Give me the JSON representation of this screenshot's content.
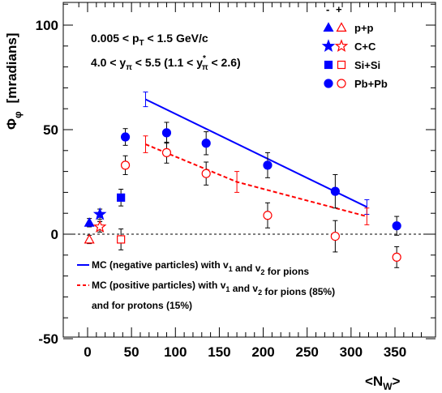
{
  "chart_data": {
    "type": "scatter",
    "xlabel": "<N",
    "xlabel_sub": "W",
    "xlabel_end": ">",
    "ylabel": "Φ",
    "ylabel_sub": "φ",
    "ylabel_unit": "[mradians]",
    "xlim": [
      -12,
      390
    ],
    "ylim": [
      -50,
      110
    ],
    "x_ticks": [
      0,
      50,
      100,
      150,
      200,
      250,
      300,
      350
    ],
    "x_tick_labels": [
      "0",
      "50",
      "100",
      "150",
      "200",
      "250",
      "300",
      "350"
    ],
    "y_ticks": [
      -50,
      0,
      50,
      100
    ],
    "y_tick_labels": [
      "-50",
      "0",
      "50",
      "100"
    ],
    "annotation1": {
      "a": "0.005 < p",
      "sub": "T",
      "b": " < 1.5 GeV/c"
    },
    "annotation2": {
      "a": "4.0 < y",
      "sub1": "π",
      "b": " < 5.5   (1.1 < y",
      "sup": "*",
      "sub2": "π",
      "c": " < 2.6)"
    },
    "legend_header": {
      "neg": "-",
      "pos": "+"
    },
    "legend_systems": [
      {
        "label": "p+p",
        "marker": "triangle"
      },
      {
        "label": "C+C",
        "marker": "star"
      },
      {
        "label": "Si+Si",
        "marker": "square"
      },
      {
        "label": "Pb+Pb",
        "marker": "circle"
      }
    ],
    "series": [
      {
        "charge": "negative",
        "color": "#0000ff",
        "filled": true,
        "points": [
          {
            "x": 2,
            "y": 5.5,
            "err": 2,
            "marker": "triangle"
          },
          {
            "x": 14,
            "y": 9.5,
            "err": 2.5,
            "marker": "star"
          },
          {
            "x": 38,
            "y": 17.5,
            "err": 4,
            "marker": "square"
          },
          {
            "x": 43,
            "y": 46.5,
            "err": 4,
            "marker": "circle"
          },
          {
            "x": 90,
            "y": 48.5,
            "err": 5,
            "marker": "circle"
          },
          {
            "x": 135,
            "y": 43.5,
            "err": 5.5,
            "marker": "circle"
          },
          {
            "x": 205,
            "y": 33,
            "err": 6,
            "marker": "circle"
          },
          {
            "x": 282,
            "y": 20.5,
            "err": 8,
            "marker": "circle"
          },
          {
            "x": 352,
            "y": 4,
            "err": 4.5,
            "marker": "circle"
          }
        ],
        "syst_bars": [
          {
            "x": 66,
            "y": 64.5,
            "err": 3.5
          },
          {
            "x": 318,
            "y": 13,
            "err": 3.5
          }
        ]
      },
      {
        "charge": "positive",
        "color": "#ff0000",
        "filled": false,
        "points": [
          {
            "x": 2,
            "y": -2.5,
            "err": 2,
            "marker": "triangle"
          },
          {
            "x": 14,
            "y": 3.5,
            "err": 2.5,
            "marker": "star"
          },
          {
            "x": 38,
            "y": -2.5,
            "err": 5,
            "marker": "square"
          },
          {
            "x": 43,
            "y": 33,
            "err": 4.5,
            "marker": "circle"
          },
          {
            "x": 90,
            "y": 39,
            "err": 5,
            "marker": "circle"
          },
          {
            "x": 135,
            "y": 29,
            "err": 5.5,
            "marker": "circle"
          },
          {
            "x": 205,
            "y": 9,
            "err": 6,
            "marker": "circle"
          },
          {
            "x": 282,
            "y": -1,
            "err": 7.5,
            "marker": "circle"
          },
          {
            "x": 352,
            "y": -11,
            "err": 5,
            "marker": "circle"
          }
        ],
        "syst_bars": [
          {
            "x": 66,
            "y": 43,
            "err": 4
          },
          {
            "x": 170,
            "y": 25,
            "err": 5
          },
          {
            "x": 318,
            "y": 8.5,
            "err": 4
          }
        ]
      }
    ],
    "mc_curves": [
      {
        "name": "MC (negative particles) with v",
        "name_parts": [
          {
            "t": "MC (negative particles) with v"
          },
          {
            "t": "1",
            "sub": true
          },
          {
            "t": " and v"
          },
          {
            "t": "2",
            "sub": true
          },
          {
            "t": " for pions"
          }
        ],
        "color": "#0000ff",
        "dashed": false,
        "x": [
          66,
          318
        ],
        "y": [
          64.5,
          13
        ]
      },
      {
        "name": "MC (positive particles) with v",
        "name_parts": [
          {
            "t": "MC (positive particles) with v"
          },
          {
            "t": "1",
            "sub": true
          },
          {
            "t": " and v"
          },
          {
            "t": "2",
            "sub": true
          },
          {
            "t": " for pions (85%)"
          }
        ],
        "name_line2": "and for protons (15%)",
        "color": "#ff0000",
        "dashed": true,
        "x": [
          66,
          170,
          318
        ],
        "y": [
          43,
          25,
          8.5
        ]
      }
    ]
  }
}
